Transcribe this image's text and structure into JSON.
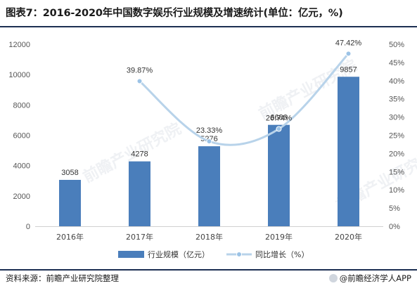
{
  "title": "图表7：2016-2020年中国数字娱乐行业规模及增速统计(单位：亿元，%)",
  "footer": {
    "source": "资料来源：前瞻产业研究院整理",
    "brand": "@前瞻经济学人APP"
  },
  "chart_data": {
    "type": "bar",
    "categories": [
      "2016年",
      "2017年",
      "2018年",
      "2019年",
      "2020年"
    ],
    "series": [
      {
        "name": "行业规模（亿元）",
        "type": "bar",
        "axis": "left",
        "values": [
          3058,
          4278,
          5276,
          6686,
          9857
        ],
        "labels": [
          "3058",
          "4278",
          "5276",
          "6686",
          "9857"
        ]
      },
      {
        "name": "同比增长（%）",
        "type": "line",
        "axis": "right",
        "values": [
          null,
          39.87,
          23.33,
          26.74,
          47.42
        ],
        "labels": [
          "",
          "39.87%",
          "23.33%",
          "26.74%",
          "47.42%"
        ]
      }
    ],
    "ylim_left": [
      0,
      12000
    ],
    "yticks_left": [
      "0",
      "2000",
      "4000",
      "6000",
      "8000",
      "10000",
      "12000"
    ],
    "ylim_right": [
      0,
      50
    ],
    "yticks_right": [
      "0%",
      "5%",
      "10%",
      "15%",
      "20%",
      "25%",
      "30%",
      "35%",
      "40%",
      "45%",
      "50%"
    ],
    "legend_position": "bottom",
    "grid": false,
    "colors": {
      "bar": "#4a7ebb",
      "line": "#b8d3ea",
      "marker": "#9cc3e6"
    }
  }
}
